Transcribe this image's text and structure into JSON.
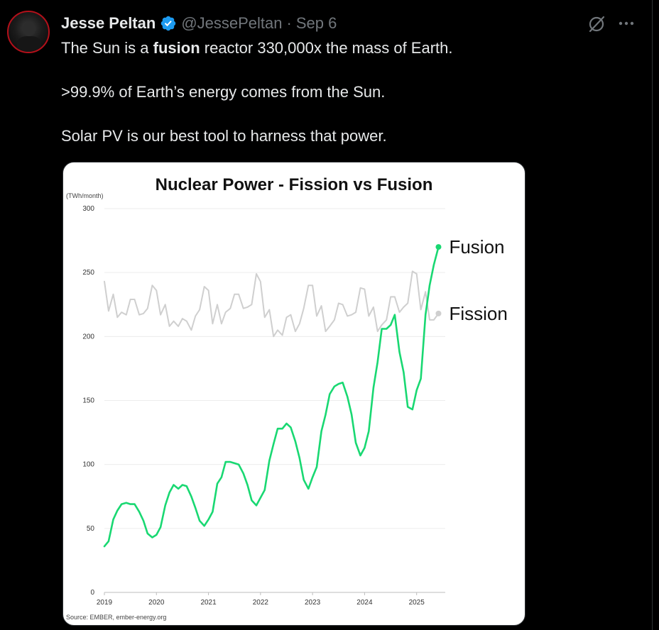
{
  "tweet": {
    "author_name": "Jesse Peltan",
    "handle": "@JessePeltan",
    "separator": "·",
    "date": "Sep 6",
    "line1_before": "The Sun is a ",
    "line1_bold": "fusion",
    "line1_after": " reactor 330,000x the mass of Earth.",
    "line2": ">99.9% of Earth’s energy comes from the Sun.",
    "line3": "Solar PV is our best tool to harness that power."
  },
  "icons": {
    "verified": "verified-badge-icon",
    "grok": "grok-icon",
    "more": "more-icon",
    "verified_color": "#1d9bf0"
  },
  "chart_data": {
    "type": "line",
    "title": "Nuclear Power - Fission vs Fusion",
    "ylabel": "(TWh/month)",
    "source": "Source: EMBER, ember-energy.org",
    "ylim": [
      0,
      300
    ],
    "yticks": [
      0,
      50,
      100,
      150,
      200,
      250,
      300
    ],
    "xlim": [
      2019,
      2025.55
    ],
    "xticks": [
      2019,
      2020,
      2021,
      2022,
      2023,
      2024,
      2025
    ],
    "grid": true,
    "legend": "end-labels",
    "series": [
      {
        "name": "Fission",
        "color": "#cfcfcf",
        "x": [
          2019.0,
          2019.08,
          2019.17,
          2019.25,
          2019.33,
          2019.42,
          2019.5,
          2019.58,
          2019.67,
          2019.75,
          2019.83,
          2019.92,
          2020.0,
          2020.08,
          2020.17,
          2020.25,
          2020.33,
          2020.42,
          2020.5,
          2020.58,
          2020.67,
          2020.75,
          2020.83,
          2020.92,
          2021.0,
          2021.08,
          2021.17,
          2021.25,
          2021.33,
          2021.42,
          2021.5,
          2021.58,
          2021.67,
          2021.75,
          2021.83,
          2021.92,
          2022.0,
          2022.08,
          2022.17,
          2022.25,
          2022.33,
          2022.42,
          2022.5,
          2022.58,
          2022.67,
          2022.75,
          2022.83,
          2022.92,
          2023.0,
          2023.08,
          2023.17,
          2023.25,
          2023.33,
          2023.42,
          2023.5,
          2023.58,
          2023.67,
          2023.75,
          2023.83,
          2023.92,
          2024.0,
          2024.08,
          2024.17,
          2024.25,
          2024.33,
          2024.42,
          2024.5,
          2024.58,
          2024.67,
          2024.75,
          2024.83,
          2024.92,
          2025.0,
          2025.08,
          2025.17,
          2025.25,
          2025.33,
          2025.42
        ],
        "values": [
          243,
          220,
          233,
          215,
          219,
          217,
          229,
          229,
          217,
          218,
          222,
          240,
          236,
          217,
          225,
          208,
          212,
          208,
          214,
          212,
          205,
          216,
          221,
          239,
          236,
          210,
          225,
          210,
          219,
          222,
          233,
          233,
          222,
          223,
          225,
          249,
          243,
          215,
          221,
          200,
          205,
          201,
          215,
          217,
          204,
          210,
          222,
          240,
          240,
          216,
          224,
          204,
          208,
          213,
          226,
          225,
          216,
          217,
          219,
          238,
          237,
          216,
          223,
          204,
          209,
          213,
          231,
          231,
          219,
          223,
          226,
          251,
          249,
          221,
          235,
          213,
          213,
          218
        ]
      },
      {
        "name": "Fusion",
        "color": "#19d872",
        "x": [
          2019.0,
          2019.08,
          2019.17,
          2019.25,
          2019.33,
          2019.42,
          2019.5,
          2019.58,
          2019.67,
          2019.75,
          2019.83,
          2019.92,
          2020.0,
          2020.08,
          2020.17,
          2020.25,
          2020.33,
          2020.42,
          2020.5,
          2020.58,
          2020.67,
          2020.75,
          2020.83,
          2020.92,
          2021.0,
          2021.08,
          2021.17,
          2021.25,
          2021.33,
          2021.42,
          2021.5,
          2021.58,
          2021.67,
          2021.75,
          2021.83,
          2021.92,
          2022.0,
          2022.08,
          2022.17,
          2022.25,
          2022.33,
          2022.42,
          2022.5,
          2022.58,
          2022.67,
          2022.75,
          2022.83,
          2022.92,
          2023.0,
          2023.08,
          2023.17,
          2023.25,
          2023.33,
          2023.42,
          2023.5,
          2023.58,
          2023.67,
          2023.75,
          2023.83,
          2023.92,
          2024.0,
          2024.08,
          2024.17,
          2024.25,
          2024.33,
          2024.42,
          2024.5,
          2024.58,
          2024.67,
          2024.75,
          2024.83,
          2024.92,
          2025.0,
          2025.08,
          2025.17,
          2025.25,
          2025.33,
          2025.42
        ],
        "values": [
          36,
          40,
          57,
          64,
          69,
          70,
          69,
          69,
          63,
          56,
          46,
          43,
          45,
          51,
          68,
          78,
          84,
          81,
          84,
          83,
          75,
          66,
          56,
          52,
          57,
          63,
          85,
          90,
          102,
          102,
          101,
          100,
          93,
          84,
          72,
          68,
          74,
          80,
          103,
          116,
          128,
          128,
          132,
          129,
          118,
          105,
          88,
          81,
          90,
          98,
          126,
          139,
          155,
          161,
          163,
          164,
          153,
          139,
          117,
          107,
          113,
          126,
          160,
          180,
          206,
          206,
          209,
          217,
          188,
          172,
          145,
          143,
          158,
          167,
          217,
          240,
          256,
          270
        ]
      }
    ]
  }
}
